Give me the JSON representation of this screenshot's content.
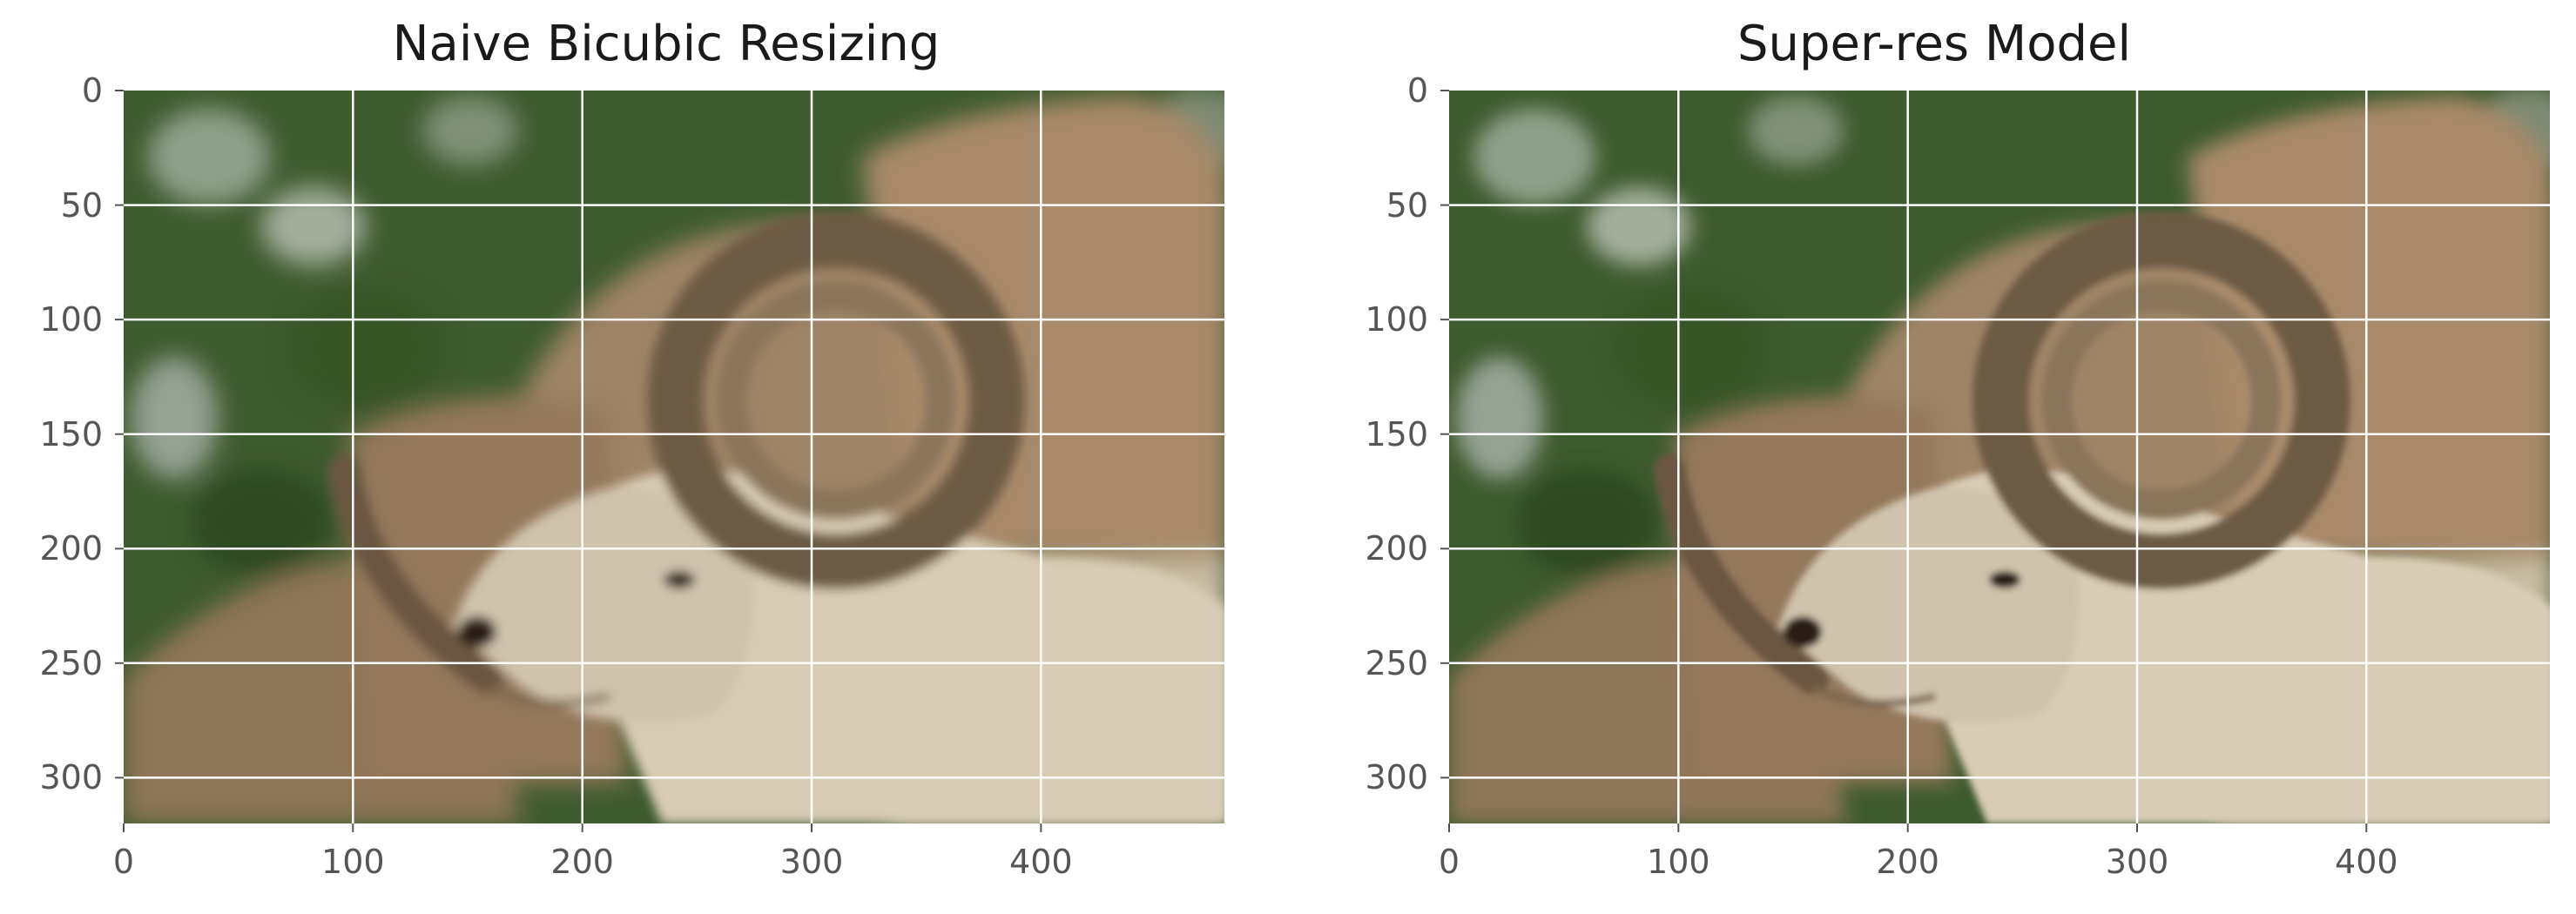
{
  "figure": {
    "panels": [
      {
        "title": "Naive Bicubic Resizing",
        "image_description_icon": "ram-photo",
        "xticks": [
          "0",
          "100",
          "200",
          "300",
          "400"
        ],
        "yticks": [
          "0",
          "50",
          "100",
          "150",
          "200",
          "250",
          "300"
        ],
        "xlim": [
          0,
          480
        ],
        "ylim": [
          320,
          0
        ],
        "grid": true
      },
      {
        "title": "Super-res Model",
        "image_description_icon": "ram-photo",
        "xticks": [
          "0",
          "100",
          "200",
          "300",
          "400"
        ],
        "yticks": [
          "0",
          "50",
          "100",
          "150",
          "200",
          "250",
          "300"
        ],
        "xlim": [
          0,
          480
        ],
        "ylim": [
          320,
          0
        ],
        "grid": true
      }
    ],
    "colors": {
      "grid": "#ffffff",
      "tick_label": "#555555",
      "title": "#1a1a1a"
    }
  }
}
